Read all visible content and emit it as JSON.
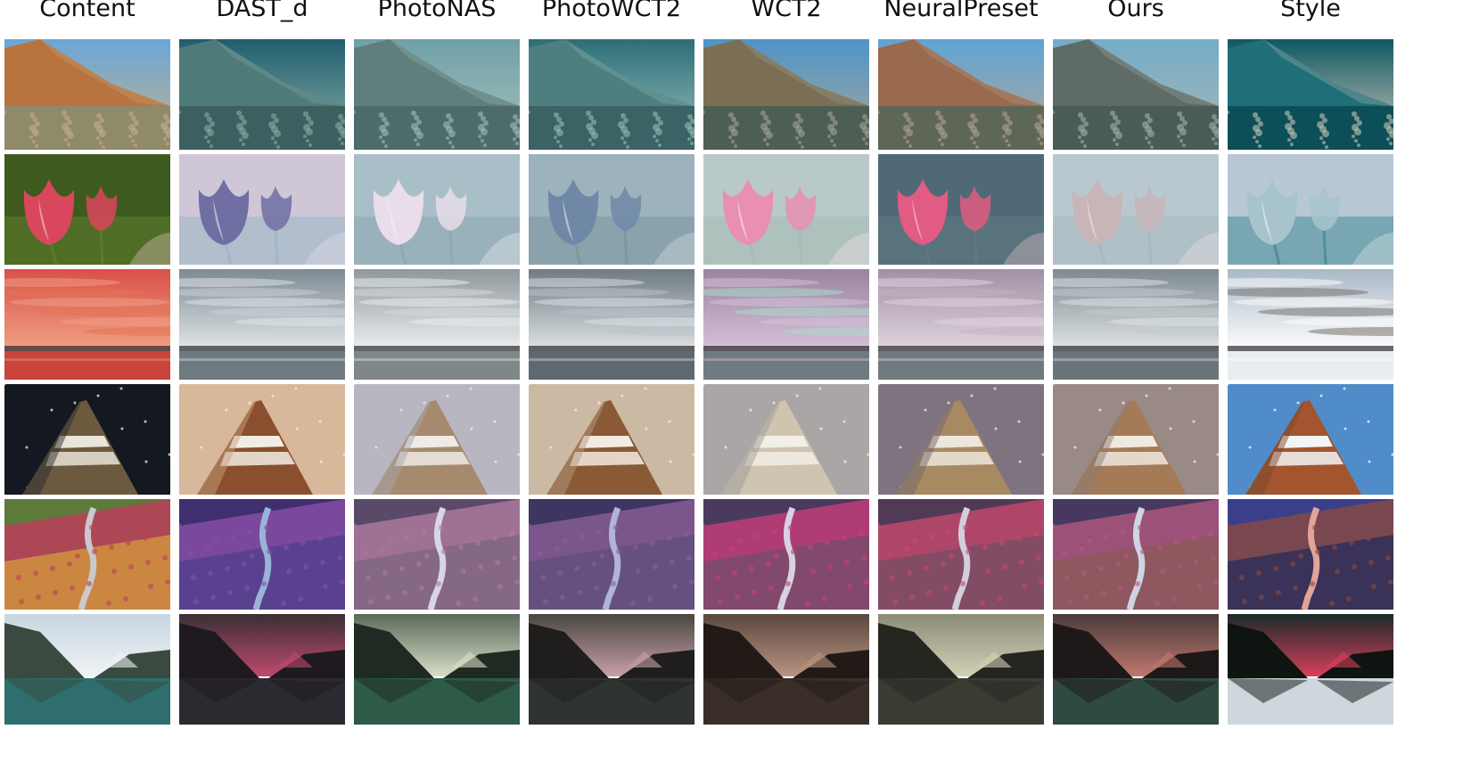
{
  "columns": [
    {
      "label": "Content"
    },
    {
      "label": "DAST_d"
    },
    {
      "label": "PhotoNAS"
    },
    {
      "label": "PhotoWCT2"
    },
    {
      "label": "WCT2"
    },
    {
      "label": "NeuralPreset"
    },
    {
      "label": "Ours"
    },
    {
      "label": "Style"
    }
  ],
  "rows": [
    {
      "scene": "desert-mountain",
      "tones": [
        {
          "sky": "#6aa6d8",
          "land": "#b9733f",
          "ground": "#8f8a6a",
          "accent": "#c9b38a"
        },
        {
          "sky": "#1f5e6e",
          "land": "#4f7a7a",
          "ground": "#3d5f60",
          "accent": "#8fb2ad"
        },
        {
          "sky": "#6fa0a8",
          "land": "#5f7f7c",
          "ground": "#4d6b68",
          "accent": "#a8c2bd"
        },
        {
          "sky": "#2c6e78",
          "land": "#4e7f80",
          "ground": "#3b6264",
          "accent": "#9cc3bf"
        },
        {
          "sky": "#4f94c8",
          "land": "#7a6f55",
          "ground": "#4f5e55",
          "accent": "#a9a998"
        },
        {
          "sky": "#5ea4d4",
          "land": "#9a6a4e",
          "ground": "#5e6658",
          "accent": "#b7a896"
        },
        {
          "sky": "#74acc8",
          "land": "#5f6b66",
          "ground": "#4a5b58",
          "accent": "#a9b8b4"
        },
        {
          "sky": "#0f5863",
          "land": "#1f6e78",
          "ground": "#0d4f58",
          "accent": "#d8cfc0"
        }
      ]
    },
    {
      "scene": "tulips",
      "tones": [
        {
          "sky": "#3f5a1e",
          "land": "#d9475d",
          "ground": "#5b7a2a",
          "accent": "#f1c9cf"
        },
        {
          "sky": "#cfc6d8",
          "land": "#6f6fa3",
          "ground": "#9fb8c6",
          "accent": "#e8e2ee"
        },
        {
          "sky": "#a9bfc8",
          "land": "#e8dde8",
          "ground": "#8fa9b0",
          "accent": "#f7f2f6"
        },
        {
          "sky": "#9cb2bc",
          "land": "#6f88a6",
          "ground": "#7e98a0",
          "accent": "#dfe6ea"
        },
        {
          "sky": "#b9c9c8",
          "land": "#e88fb3",
          "ground": "#a9bcb6",
          "accent": "#f6e8ee"
        },
        {
          "sky": "#4f6a76",
          "land": "#e15b82",
          "ground": "#5f7980",
          "accent": "#f1c4d2"
        },
        {
          "sky": "#b9c8cf",
          "land": "#c7b5b8",
          "ground": "#a8babf",
          "accent": "#ede6e8"
        },
        {
          "sky": "#b8c7d6",
          "land": "#a7c4cc",
          "ground": "#4f8f9b",
          "accent": "#e9eef2"
        }
      ]
    },
    {
      "scene": "sunset-sea",
      "tones": [
        {
          "sky": "#d9504a",
          "land": "#e2734f",
          "ground": "#c9443a",
          "accent": "#f1a184"
        },
        {
          "sky": "#7d8a92",
          "land": "#c9d3d8",
          "ground": "#6f7980",
          "accent": "#e3e8ea"
        },
        {
          "sky": "#8f989c",
          "land": "#d6dcde",
          "ground": "#7f8789",
          "accent": "#eef0f1"
        },
        {
          "sky": "#6f7b82",
          "land": "#bac4ca",
          "ground": "#5f696f",
          "accent": "#dfe4e6"
        },
        {
          "sky": "#9a84a0",
          "land": "#a8e0c9",
          "ground": "#6f7b80",
          "accent": "#d6c3d8"
        },
        {
          "sky": "#a090a4",
          "land": "#c6b2c2",
          "ground": "#707b80",
          "accent": "#e2d6e0"
        },
        {
          "sky": "#7e8a90",
          "land": "#c4ccd0",
          "ground": "#6a7479",
          "accent": "#e1e5e7"
        },
        {
          "sky": "#a9b8c6",
          "land": "#6f6a63",
          "ground": "#e9edf0",
          "accent": "#ffffff"
        }
      ]
    },
    {
      "scene": "tower-night",
      "tones": [
        {
          "sky": "#141820",
          "land": "#6b5a3e",
          "ground": "#2a2a2e",
          "accent": "#e8e4d8"
        },
        {
          "sky": "#d8b89a",
          "land": "#8a4f2e",
          "ground": "#c9a07c",
          "accent": "#f1ece4"
        },
        {
          "sky": "#b8b6c0",
          "land": "#a58a6e",
          "ground": "#a9a6ae",
          "accent": "#efeae4"
        },
        {
          "sky": "#cbb9a4",
          "land": "#8a5a36",
          "ground": "#b89a7c",
          "accent": "#f3ebe0"
        },
        {
          "sky": "#aaa6a6",
          "land": "#cfc4b0",
          "ground": "#9e9a98",
          "accent": "#f2efe6"
        },
        {
          "sky": "#7e7480",
          "land": "#a88a62",
          "ground": "#6f6670",
          "accent": "#ede6da"
        },
        {
          "sky": "#9a8a86",
          "land": "#a57a56",
          "ground": "#8a7c78",
          "accent": "#f0e9df"
        },
        {
          "sky": "#4f8cc8",
          "land": "#a2552e",
          "ground": "#7a4a2e",
          "accent": "#f2f4f6"
        }
      ]
    },
    {
      "scene": "valley-river",
      "tones": [
        {
          "sky": "#5c7a3a",
          "land": "#c03c5c",
          "ground": "#d9a23a",
          "accent": "#c9c9cf"
        },
        {
          "sky": "#3f2f6e",
          "land": "#8a4fa8",
          "ground": "#4b3f8c",
          "accent": "#9ab4d8"
        },
        {
          "sky": "#5a4a6a",
          "land": "#b07aa0",
          "ground": "#7a6480",
          "accent": "#d8d6e4"
        },
        {
          "sky": "#3e3560",
          "land": "#8a5f98",
          "ground": "#5e4f7a",
          "accent": "#b0b4d6"
        },
        {
          "sky": "#4a3a5e",
          "land": "#c83f7a",
          "ground": "#6f4f6a",
          "accent": "#d6d2e2"
        },
        {
          "sky": "#503a56",
          "land": "#c64a6e",
          "ground": "#6e4e62",
          "accent": "#d2cedc"
        },
        {
          "sky": "#46385e",
          "land": "#b2587e",
          "ground": "#8a5a52",
          "accent": "#ced4e4"
        },
        {
          "sky": "#3b3f8a",
          "land": "#8a4a40",
          "ground": "#1f2a5c",
          "accent": "#e2a49a"
        }
      ]
    },
    {
      "scene": "mountain-lake",
      "tones": [
        {
          "sky": "#c9d6e0",
          "land": "#3a4a40",
          "ground": "#2f6e6e",
          "accent": "#eef2f5"
        },
        {
          "sky": "#3a2f36",
          "land": "#1e1a20",
          "ground": "#2a2a30",
          "accent": "#c04a6e"
        },
        {
          "sky": "#5a6a5a",
          "land": "#1e2a22",
          "ground": "#2e5a48",
          "accent": "#d8ddc8"
        },
        {
          "sky": "#4a4640",
          "land": "#1f1e1c",
          "ground": "#2f3430",
          "accent": "#c8a0a8"
        },
        {
          "sky": "#5a4840",
          "land": "#221a16",
          "ground": "#3a2e28",
          "accent": "#b89480"
        },
        {
          "sky": "#8a8a76",
          "land": "#262620",
          "ground": "#3a3c34",
          "accent": "#d4d0b8"
        },
        {
          "sky": "#4a3a3a",
          "land": "#1e1818",
          "ground": "#2f4a40",
          "accent": "#c0786e"
        },
        {
          "sky": "#1a2a2a",
          "land": "#0e1410",
          "ground": "#cfd6dc",
          "accent": "#d8405a"
        }
      ]
    }
  ]
}
